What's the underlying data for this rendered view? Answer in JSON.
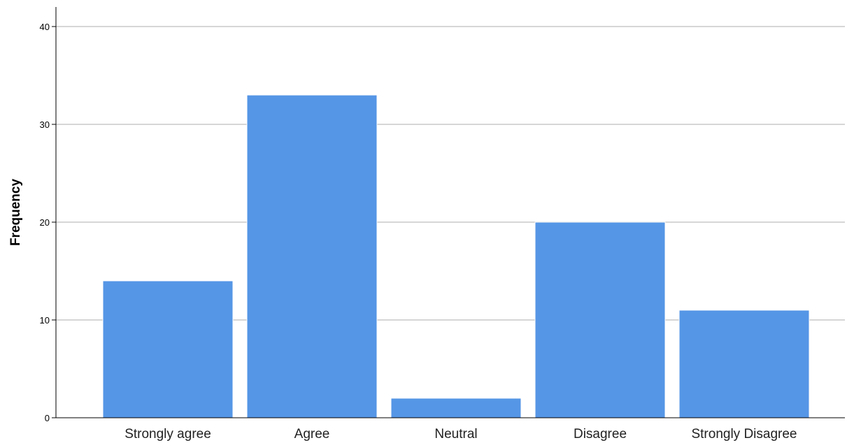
{
  "chart_data": {
    "type": "bar",
    "title": "",
    "xlabel": "",
    "ylabel": "Frequency",
    "categories": [
      "Strongly agree",
      "Agree",
      "Neutral",
      "Disagree",
      "Strongly Disagree"
    ],
    "values": [
      14,
      33,
      2,
      20,
      11
    ],
    "ylim": [
      0,
      42
    ],
    "yticks": [
      0,
      10,
      20,
      30,
      40
    ],
    "grid": true,
    "legend": "none",
    "colors": {
      "bar": "#5596e6",
      "bar_edge": "#ffffff",
      "grid": "#c8c8c8",
      "axis": "#000000"
    }
  }
}
